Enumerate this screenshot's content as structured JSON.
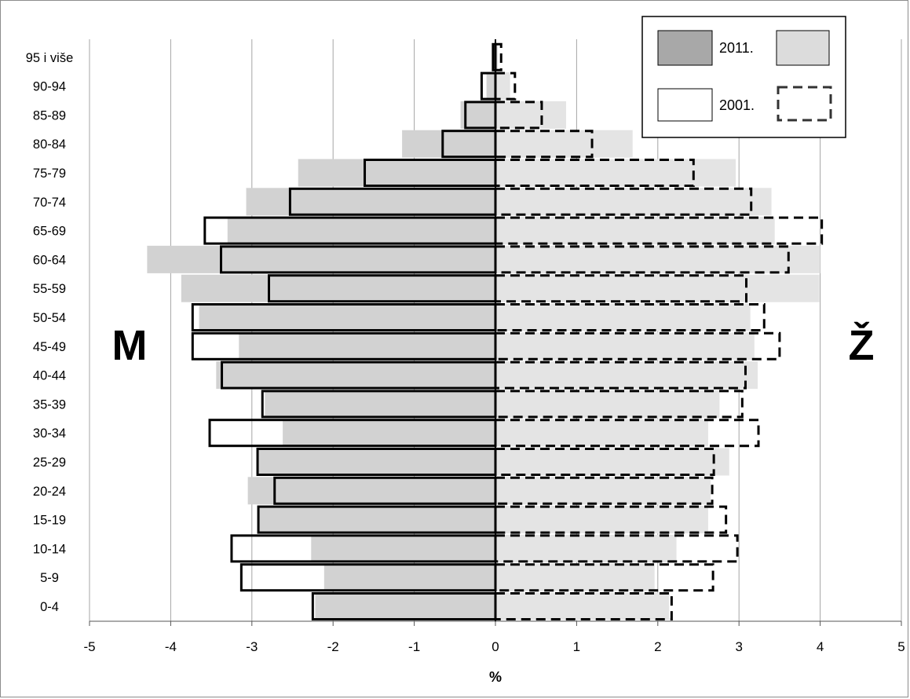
{
  "chart_data": {
    "type": "bar",
    "orientation": "horizontal",
    "subtype": "population-pyramid",
    "categories": [
      "0-4",
      "5-9",
      "10-14",
      "15-19",
      "20-24",
      "25-29",
      "30-34",
      "35-39",
      "40-44",
      "45-49",
      "50-54",
      "55-59",
      "60-64",
      "65-69",
      "70-74",
      "75-79",
      "80-84",
      "85-89",
      "90-94",
      "95 i više"
    ],
    "series": [
      {
        "name": "2011.",
        "side": "M",
        "values": [
          -2.22,
          -2.11,
          -2.27,
          -2.91,
          -3.05,
          -2.94,
          -2.62,
          -2.84,
          -3.44,
          -3.16,
          -3.65,
          -3.87,
          -4.29,
          -3.3,
          -3.07,
          -2.43,
          -1.15,
          -0.43,
          -0.11,
          -0.01
        ]
      },
      {
        "name": "2011.",
        "side": "Ž",
        "values": [
          2.14,
          1.96,
          2.23,
          2.62,
          2.65,
          2.88,
          2.62,
          2.76,
          3.23,
          3.19,
          3.14,
          3.99,
          4.0,
          3.44,
          3.4,
          2.96,
          1.69,
          0.87,
          0.18,
          0.03
        ]
      },
      {
        "name": "2001.",
        "side": "M",
        "values": [
          -2.25,
          -3.13,
          -3.25,
          -2.92,
          -2.72,
          -2.93,
          -3.52,
          -2.87,
          -3.37,
          -3.73,
          -3.73,
          -2.79,
          -3.38,
          -3.58,
          -2.53,
          -1.61,
          -0.65,
          -0.37,
          -0.17,
          -0.03
        ]
      },
      {
        "name": "2001.",
        "side": "Ž",
        "values": [
          2.17,
          2.68,
          2.98,
          2.84,
          2.67,
          2.69,
          3.24,
          3.04,
          3.08,
          3.5,
          3.31,
          3.09,
          3.61,
          4.02,
          3.15,
          2.44,
          1.19,
          0.57,
          0.24,
          0.07
        ]
      }
    ],
    "xlim": [
      -5,
      5
    ],
    "xticks": [
      "-5",
      "-4",
      "-3",
      "-2",
      "-1",
      "0",
      "1",
      "2",
      "3",
      "4",
      "5"
    ],
    "xlabel": "%",
    "ylabel": "",
    "title": "",
    "side_labels": {
      "left": "M",
      "right": "Ž"
    },
    "legend": {
      "position": "top-right",
      "entries": [
        "2011.",
        "2001."
      ]
    },
    "grid": "vertical",
    "colors": {
      "male_2011": "#d2d2d2",
      "female_2011": "#e4e4e4",
      "bar_2001_outline": "#000000",
      "gridline": "#a6a6a6",
      "frame": "#8c8c8c"
    }
  }
}
